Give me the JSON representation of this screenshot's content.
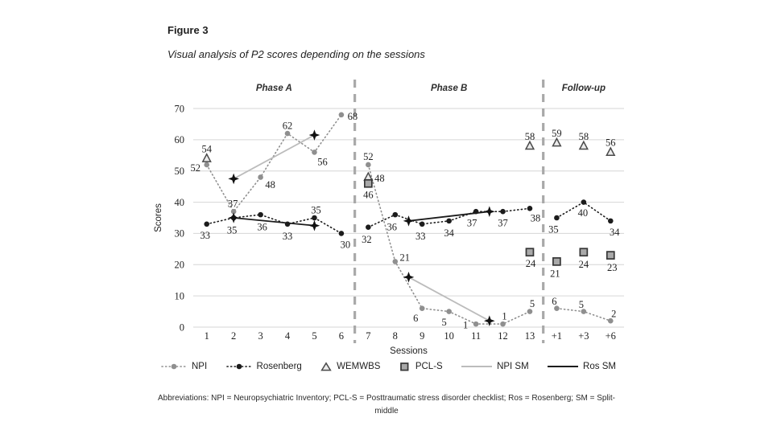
{
  "figure": {
    "label": "Figure 3",
    "title": "Visual analysis of P2 scores depending on the sessions"
  },
  "chart_data": {
    "type": "line",
    "title": "Visual analysis of P2 scores depending on the sessions",
    "xlabel": "Sessions",
    "ylabel": "Scores",
    "ylim": [
      0,
      70
    ],
    "yticks": [
      0,
      10,
      20,
      30,
      40,
      50,
      60,
      70
    ],
    "grid": true,
    "legend_position": "bottom",
    "x_categories": [
      "1",
      "2",
      "3",
      "4",
      "5",
      "6",
      "7",
      "8",
      "9",
      "10",
      "11",
      "12",
      "13",
      "+1",
      "+3",
      "+6"
    ],
    "phases": [
      {
        "label": "Phase A",
        "from": 1,
        "to": 6
      },
      {
        "label": "Phase B",
        "from": 7,
        "to": 13
      },
      {
        "label": "Follow-up",
        "from": 14,
        "to": 16
      }
    ],
    "divider_color": "#a9a9a9",
    "grid_color": "#d6d6d6",
    "series": [
      {
        "name": "NPI",
        "marker": "circle",
        "dash": "dotted",
        "color": "#8f8f8f",
        "mfill": "#8f8f8f",
        "mstroke": "none",
        "segments": [
          [
            [
              1,
              52,
              -14,
              4
            ],
            [
              2,
              37,
              -1,
              -10
            ],
            [
              3,
              48,
              12,
              9
            ],
            [
              4,
              62,
              0,
              -10
            ],
            [
              5,
              56,
              10,
              12
            ],
            [
              6,
              68,
              14,
              2
            ]
          ],
          [
            [
              7,
              52,
              0,
              -10
            ],
            [
              8,
              21,
              12,
              -5
            ],
            [
              9,
              6,
              -8,
              12
            ],
            [
              10,
              5,
              -6,
              13
            ],
            [
              11,
              1,
              -13,
              1
            ],
            [
              12,
              1,
              2,
              -10
            ],
            [
              13,
              5,
              3,
              -10
            ]
          ],
          [
            [
              14,
              6,
              -3,
              -9
            ],
            [
              15,
              5,
              -3,
              -9
            ],
            [
              16,
              2,
              4,
              -9
            ]
          ]
        ]
      },
      {
        "name": "Rosenberg",
        "marker": "circle",
        "dash": "dotted",
        "color": "#1c1c1c",
        "mfill": "#1c1c1c",
        "mstroke": "none",
        "segments": [
          [
            [
              1,
              33,
              -2,
              14
            ],
            [
              2,
              35,
              -2,
              15
            ],
            [
              3,
              36,
              2,
              15
            ],
            [
              4,
              33,
              0,
              15
            ],
            [
              5,
              35,
              2,
              -10
            ],
            [
              6,
              30,
              5,
              14
            ]
          ],
          [
            [
              7,
              32,
              -2,
              15
            ],
            [
              8,
              36,
              -4,
              15
            ],
            [
              9,
              33,
              -2,
              15
            ],
            [
              10,
              34,
              0,
              15
            ],
            [
              11,
              37,
              -5,
              14
            ],
            [
              12,
              37,
              0,
              14
            ],
            [
              13,
              38,
              7,
              12
            ]
          ],
          [
            [
              14,
              35,
              -4,
              14
            ],
            [
              15,
              40,
              -1,
              13
            ],
            [
              16,
              34,
              5,
              14
            ]
          ]
        ]
      },
      {
        "name": "WEMWBS",
        "marker": "triangle",
        "line": false,
        "color": "none",
        "mfill": "#ebebeb",
        "mstroke": "#4a4a4a",
        "segments": [
          [
            [
              1,
              54,
              0,
              -12
            ],
            [
              7,
              48,
              14,
              1
            ],
            [
              13,
              58,
              0,
              -12
            ],
            [
              14,
              59,
              0,
              -12
            ],
            [
              15,
              58,
              0,
              -12
            ],
            [
              16,
              56,
              0,
              -12
            ]
          ]
        ]
      },
      {
        "name": "PCL-S",
        "marker": "square",
        "line": false,
        "color": "none",
        "mfill": "#a9a9a9",
        "mstroke": "#363636",
        "segments": [
          [
            [
              7,
              46,
              0,
              14
            ],
            [
              13,
              24,
              1,
              14
            ],
            [
              14,
              21,
              -2,
              15
            ],
            [
              15,
              24,
              0,
              15
            ],
            [
              16,
              23,
              2,
              15
            ]
          ]
        ]
      },
      {
        "name": "NPI SM",
        "marker": "star4",
        "dash": "solid",
        "color": "#bcbcbc",
        "mfill": "#111111",
        "mstroke": "none",
        "segments": [
          [
            [
              2,
              47.5
            ],
            [
              5,
              61.5
            ]
          ],
          [
            [
              8.5,
              16
            ],
            [
              11.5,
              2
            ]
          ]
        ]
      },
      {
        "name": "Ros SM",
        "marker": "star4",
        "dash": "solid",
        "color": "#1c1c1c",
        "mfill": "#111111",
        "mstroke": "none",
        "segments": [
          [
            [
              2,
              35
            ],
            [
              5,
              32.5
            ]
          ],
          [
            [
              8.5,
              34
            ],
            [
              11.5,
              37
            ]
          ]
        ]
      }
    ]
  },
  "footnote": {
    "line1": "Abbreviations: NPI = Neuropsychiatric Inventory; PCL-S = Posttraumatic stress disorder checklist; Ros = Rosenberg; SM = Split-",
    "line2": "middle"
  }
}
